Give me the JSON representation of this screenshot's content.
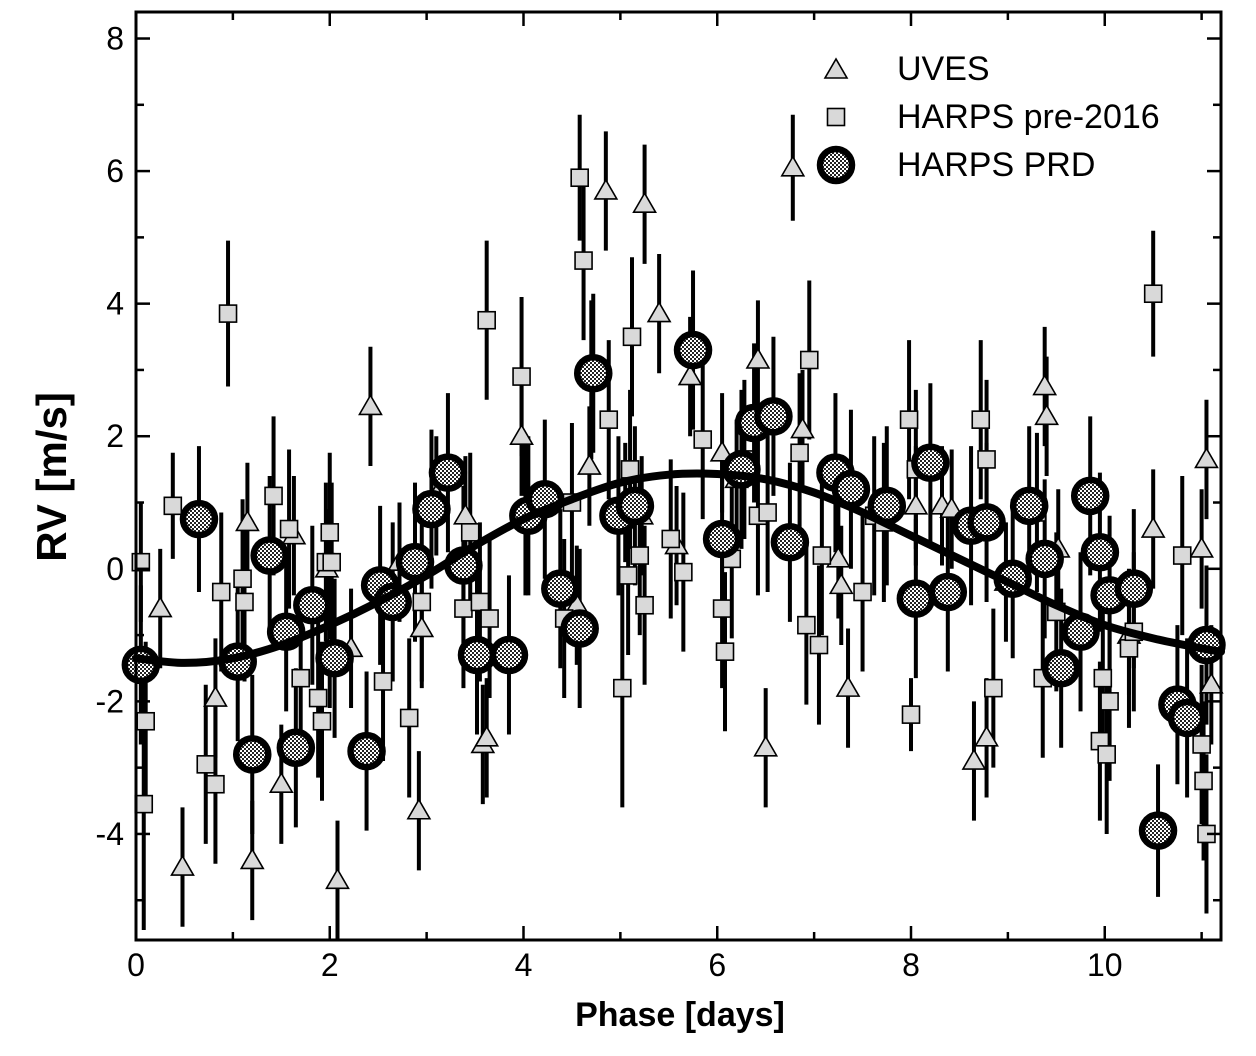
{
  "chart_data": {
    "type": "scatter",
    "title": "",
    "xlabel": "Phase [days]",
    "ylabel": "RV [m/s]",
    "xlim": [
      0,
      11.2
    ],
    "ylim": [
      -5.6,
      8.4
    ],
    "grid": false,
    "legend_position": "top-right",
    "x_ticks": [
      0,
      2,
      4,
      6,
      8,
      10
    ],
    "y_ticks": [
      -4,
      -2,
      0,
      2,
      4,
      6,
      8
    ],
    "colors": {
      "marker_fill": "#d9d9d9",
      "line": "#000000",
      "circle_fill": "#c8c8c8"
    },
    "legend": [
      {
        "label": "UVES",
        "marker": "triangle"
      },
      {
        "label": "HARPS pre-2016",
        "marker": "square"
      },
      {
        "label": "HARPS PRD",
        "marker": "circle"
      }
    ],
    "series": [
      {
        "name": "UVES",
        "marker": "triangle",
        "x": [
          0.25,
          0.48,
          0.82,
          1.15,
          1.2,
          1.5,
          1.63,
          1.97,
          2.0,
          2.08,
          2.22,
          2.42,
          2.72,
          2.92,
          2.95,
          3.1,
          3.4,
          3.58,
          3.62,
          3.98,
          4.55,
          4.68,
          4.85,
          5.05,
          5.22,
          5.25,
          5.4,
          5.58,
          5.72,
          6.05,
          6.2,
          6.42,
          6.5,
          6.78,
          6.88,
          7.25,
          7.28,
          7.35,
          8.05,
          8.32,
          8.42,
          8.65,
          8.78,
          8.98,
          9.38,
          9.4,
          9.52,
          10.25,
          10.5,
          11.0,
          11.05,
          11.1
        ],
        "y": [
          -0.6,
          -4.5,
          -1.95,
          0.7,
          -4.4,
          -3.25,
          0.5,
          0.0,
          -1.2,
          -4.7,
          -1.2,
          2.45,
          0.1,
          -3.65,
          -0.9,
          1.1,
          0.8,
          -2.65,
          -2.55,
          2.0,
          -0.55,
          1.55,
          5.7,
          1.0,
          0.8,
          5.5,
          3.85,
          0.35,
          2.9,
          1.75,
          1.35,
          3.15,
          -2.7,
          6.05,
          2.1,
          0.15,
          -0.25,
          -1.8,
          0.95,
          0.95,
          0.9,
          -2.9,
          -2.55,
          -0.2,
          2.75,
          2.3,
          0.3,
          -1.0,
          0.6,
          0.3,
          1.65,
          -1.75
        ],
        "yerr": [
          0.9,
          0.9,
          0.9,
          0.9,
          0.9,
          0.9,
          0.9,
          0.9,
          0.9,
          0.9,
          0.9,
          0.9,
          0.9,
          0.9,
          0.9,
          0.9,
          0.9,
          0.9,
          0.9,
          0.9,
          0.9,
          0.9,
          0.9,
          0.9,
          0.9,
          0.9,
          0.9,
          0.9,
          0.9,
          0.9,
          0.9,
          0.9,
          0.9,
          0.8,
          0.9,
          0.9,
          0.9,
          0.9,
          0.9,
          0.9,
          0.9,
          0.9,
          0.9,
          0.9,
          0.9,
          0.9,
          0.9,
          0.9,
          0.9,
          0.9,
          0.9,
          0.9
        ]
      },
      {
        "name": "HARPS pre-2016",
        "marker": "square",
        "x": [
          0.05,
          0.08,
          0.1,
          0.38,
          0.95,
          0.72,
          0.82,
          0.88,
          1.1,
          1.12,
          1.42,
          1.58,
          1.7,
          1.88,
          1.92,
          1.96,
          2.0,
          2.02,
          2.55,
          2.82,
          2.95,
          3.38,
          3.45,
          3.55,
          3.62,
          3.65,
          3.98,
          4.02,
          4.42,
          4.58,
          4.5,
          4.62,
          4.7,
          4.88,
          5.02,
          5.08,
          5.1,
          5.12,
          5.2,
          5.25,
          5.52,
          5.65,
          5.85,
          6.05,
          6.08,
          6.15,
          6.28,
          6.42,
          6.52,
          6.85,
          6.92,
          6.95,
          7.05,
          7.08,
          7.5,
          7.62,
          7.72,
          7.98,
          8.0,
          8.05,
          8.72,
          8.78,
          8.85,
          9.3,
          9.36,
          9.5,
          9.95,
          9.98,
          10.02,
          10.05,
          10.25,
          10.3,
          10.5,
          10.8,
          11.0,
          11.02,
          11.05
        ],
        "y": [
          0.1,
          -3.55,
          -2.3,
          0.95,
          3.85,
          -2.95,
          -3.25,
          -0.35,
          -0.15,
          -0.5,
          1.1,
          0.6,
          -1.65,
          -1.95,
          -2.3,
          0.1,
          0.55,
          0.1,
          -1.7,
          -2.25,
          -0.5,
          -0.6,
          0.55,
          -0.5,
          3.75,
          -0.75,
          2.9,
          0.8,
          -0.75,
          5.9,
          1.0,
          4.65,
          2.85,
          2.25,
          -1.8,
          -0.1,
          1.5,
          3.5,
          0.2,
          -0.55,
          0.45,
          -0.05,
          1.95,
          -0.6,
          -1.25,
          0.15,
          1.65,
          0.8,
          0.85,
          1.75,
          -0.85,
          3.15,
          -1.15,
          0.2,
          -0.35,
          0.8,
          0.7,
          2.25,
          -2.2,
          1.5,
          2.25,
          1.65,
          -1.8,
          0.85,
          -1.65,
          -0.65,
          -2.6,
          -1.65,
          -2.8,
          -2.0,
          -1.2,
          -0.95,
          4.15,
          0.2,
          -2.65,
          -3.2,
          -4.0
        ],
        "yerr": [
          0.9,
          1.9,
          1.2,
          0.8,
          1.1,
          1.2,
          1.2,
          1.2,
          1.2,
          1.2,
          1.2,
          1.2,
          1.2,
          1.2,
          1.2,
          1.2,
          1.2,
          1.2,
          1.2,
          1.2,
          1.2,
          1.2,
          1.2,
          1.2,
          1.2,
          1.2,
          1.2,
          1.2,
          1.2,
          0.95,
          1.2,
          1.2,
          1.2,
          1.2,
          1.8,
          1.2,
          1.2,
          1.2,
          1.2,
          1.2,
          1.2,
          1.2,
          1.2,
          1.2,
          1.2,
          1.2,
          1.2,
          1.2,
          1.2,
          1.2,
          1.2,
          1.2,
          1.2,
          1.2,
          1.2,
          1.2,
          1.2,
          1.2,
          0.55,
          1.2,
          1.2,
          1.2,
          1.2,
          1.2,
          1.2,
          1.2,
          1.2,
          1.2,
          1.2,
          1.2,
          1.2,
          1.2,
          0.95,
          1.2,
          1.2,
          1.2,
          1.2
        ]
      },
      {
        "name": "HARPS PRD",
        "marker": "circle",
        "x": [
          0.05,
          0.65,
          1.05,
          1.2,
          1.38,
          1.55,
          1.65,
          1.82,
          2.05,
          2.38,
          2.52,
          2.65,
          2.88,
          3.05,
          3.22,
          3.38,
          3.52,
          3.85,
          4.05,
          4.22,
          4.38,
          4.58,
          4.72,
          4.98,
          5.15,
          5.75,
          6.05,
          6.25,
          6.38,
          6.58,
          6.75,
          7.22,
          7.38,
          7.75,
          8.05,
          8.2,
          8.38,
          8.62,
          8.78,
          9.05,
          9.22,
          9.38,
          9.55,
          9.75,
          9.85,
          9.95,
          10.05,
          10.3,
          10.55,
          10.75,
          10.85,
          11.05
        ],
        "y": [
          -1.45,
          0.75,
          -1.4,
          -2.8,
          0.2,
          -0.95,
          -2.7,
          -0.55,
          -1.35,
          -2.75,
          -0.25,
          -0.5,
          0.1,
          0.9,
          1.45,
          0.05,
          -1.3,
          -1.3,
          0.8,
          1.05,
          -0.3,
          -0.9,
          2.95,
          0.8,
          0.95,
          3.3,
          0.45,
          1.5,
          2.2,
          2.3,
          0.4,
          1.45,
          1.2,
          0.95,
          -0.45,
          1.6,
          -0.35,
          0.65,
          0.7,
          -0.15,
          0.95,
          0.15,
          -1.5,
          -0.95,
          1.1,
          0.25,
          -0.4,
          -0.3,
          -3.95,
          -2.05,
          -2.25,
          -1.15
        ],
        "yerr": [
          1.2,
          1.1,
          1.2,
          1.2,
          1.2,
          1.2,
          1.2,
          1.2,
          1.2,
          1.2,
          1.2,
          1.2,
          1.2,
          1.2,
          1.2,
          1.2,
          1.2,
          1.2,
          1.2,
          1.2,
          1.2,
          1.2,
          1.2,
          1.2,
          1.2,
          1.2,
          1.2,
          1.2,
          1.2,
          1.2,
          1.2,
          1.2,
          1.2,
          1.2,
          1.2,
          1.2,
          1.2,
          1.2,
          1.2,
          1.2,
          1.2,
          1.2,
          1.2,
          1.2,
          1.2,
          1.2,
          1.2,
          1.2,
          1.0,
          1.2,
          1.2,
          1.2
        ]
      }
    ],
    "fit_curve": {
      "x": [
        0,
        0.5,
        1.0,
        1.5,
        2.0,
        2.5,
        3.0,
        3.5,
        4.0,
        4.5,
        5.0,
        5.5,
        6.0,
        6.5,
        7.0,
        7.5,
        8.0,
        8.5,
        9.0,
        9.5,
        10.0,
        10.5,
        11.0,
        11.2
      ],
      "y": [
        -1.35,
        -1.42,
        -1.35,
        -1.15,
        -0.85,
        -0.5,
        -0.1,
        0.35,
        0.75,
        1.05,
        1.3,
        1.42,
        1.43,
        1.35,
        1.15,
        0.85,
        0.5,
        0.15,
        -0.2,
        -0.55,
        -0.85,
        -1.05,
        -1.2,
        -1.25
      ]
    }
  }
}
